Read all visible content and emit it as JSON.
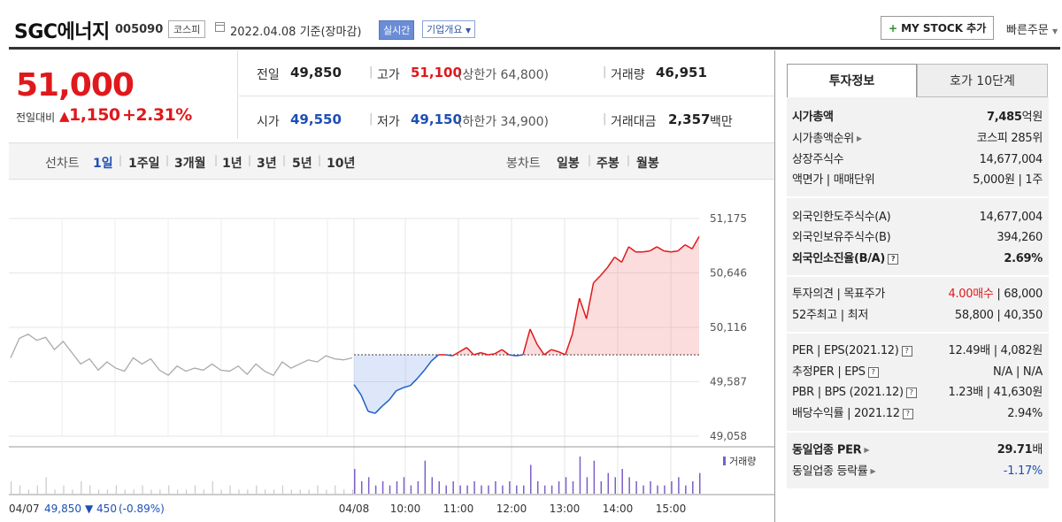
{
  "header": {
    "name": "SGC에너지",
    "code": "005090",
    "market": "코스피",
    "date": "2022.04.08 기준(장마감)",
    "realtime_button": "실시간",
    "overview_button": "기업개요",
    "mystock_button": "MY STOCK 추가",
    "quick_order": "빠른주문"
  },
  "price": {
    "current": "51,000",
    "change_label": "전일대비",
    "change": "1,150",
    "change_pct": "+2.31%"
  },
  "quote": {
    "prev_label": "전일",
    "prev": "49,850",
    "high_label": "고가",
    "high": "51,100",
    "upper_limit": "(상한가 64,800)",
    "volume_label": "거래량",
    "volume": "46,951",
    "open_label": "시가",
    "open": "49,550",
    "low_label": "저가",
    "low": "49,150",
    "lower_limit": "(하한가 34,900)",
    "amount_label": "거래대금",
    "amount": "2,357",
    "amount_unit": "백만"
  },
  "period_bar": {
    "line_label": "선차트",
    "line_periods": [
      "1일",
      "1주일",
      "3개월",
      "1년",
      "3년",
      "5년",
      "10년"
    ],
    "selected_period": "1일",
    "candle_label": "봉차트",
    "candle_periods": [
      "일봉",
      "주봉",
      "월봉"
    ]
  },
  "chart_data": {
    "type": "line",
    "y_ticks": [
      "51,175",
      "50,646",
      "50,116",
      "49,587",
      "49,058"
    ],
    "ylim": [
      49058,
      51175
    ],
    "x_labels": [
      "04/08",
      "10:00",
      "11:00",
      "12:00",
      "13:00",
      "14:00",
      "15:00"
    ],
    "reference_price": 49850,
    "volume_legend": "거래량",
    "prev_day_summary": {
      "date": "04/07",
      "close": "49,850",
      "change": "▼ 450",
      "change_pct": "(-0.89%)"
    },
    "prev_day_series": [
      49820,
      50010,
      50050,
      49990,
      50020,
      49900,
      49980,
      49870,
      49760,
      49810,
      49700,
      49780,
      49720,
      49690,
      49820,
      49760,
      49810,
      49700,
      49650,
      49740,
      49690,
      49720,
      49700,
      49760,
      49700,
      49690,
      49740,
      49660,
      49760,
      49690,
      49650,
      49780,
      49720,
      49760,
      49800,
      49780,
      49840,
      49810,
      49800,
      49820
    ],
    "today_series": [
      49560,
      49460,
      49300,
      49280,
      49350,
      49410,
      49500,
      49530,
      49550,
      49620,
      49700,
      49790,
      49850,
      49850,
      49840,
      49880,
      49920,
      49850,
      49870,
      49850,
      49860,
      49900,
      49850,
      49840,
      49850,
      50100,
      49950,
      49850,
      49900,
      49880,
      49850,
      50050,
      50400,
      50200,
      50550,
      50620,
      50700,
      50800,
      50750,
      50900,
      50850,
      50850,
      50860,
      50900,
      50860,
      50850,
      50860,
      50920,
      50880,
      51000
    ],
    "prev_volume": [
      3,
      2,
      1,
      2,
      4,
      1,
      2,
      1,
      3,
      2,
      1,
      1,
      2,
      1,
      1,
      2,
      1,
      1,
      2,
      1,
      1,
      2,
      1,
      3,
      1,
      2,
      1,
      1,
      2,
      1,
      1,
      2,
      1,
      1,
      1,
      2,
      1,
      2,
      1,
      1
    ],
    "today_volume": [
      6,
      3,
      4,
      2,
      3,
      2,
      3,
      4,
      2,
      3,
      8,
      4,
      3,
      2,
      3,
      2,
      2,
      3,
      2,
      2,
      3,
      2,
      3,
      2,
      2,
      7,
      3,
      2,
      2,
      3,
      4,
      3,
      9,
      4,
      8,
      3,
      5,
      4,
      6,
      4,
      3,
      2,
      3,
      2,
      2,
      3,
      4,
      2,
      3,
      5
    ]
  },
  "tabs": {
    "invest": "투자정보",
    "quote10": "호가 10단계"
  },
  "invest_info": {
    "market_cap_label": "시가총액",
    "market_cap": "7,485",
    "market_cap_unit": "억원",
    "rank_label": "시가총액순위",
    "rank": "코스피 285위",
    "shares_label": "상장주식수",
    "shares": "14,677,004",
    "face_label": "액면가 | 매매단위",
    "face": "5,000원 | 1주",
    "foreign_limit_label": "외국인한도주식수(A)",
    "foreign_limit": "14,677,004",
    "foreign_hold_label": "외국인보유주식수(B)",
    "foreign_hold": "394,260",
    "foreign_ratio_label": "외국인소진율(B/A)",
    "foreign_ratio": "2.69%",
    "opinion_label": "투자의견 | 목표주가",
    "opinion": "4.00매수",
    "target": " | 68,000",
    "week52_label": "52주최고 | 최저",
    "week52": "58,800 | 40,350",
    "per_label": "PER | EPS(2021.12)",
    "per": "12.49배 | 4,082원",
    "est_per_label": "추정PER | EPS",
    "est_per": "N/A | N/A",
    "pbr_label": "PBR | BPS (2021.12)",
    "pbr": "1.23배 | 41,630원",
    "dividend_label": "배당수익률 | 2021.12",
    "dividend": "2.94%",
    "sector_per_label": "동일업종 PER",
    "sector_per": "29.71",
    "sector_per_unit": "배",
    "sector_change_label": "동일업종 등락률",
    "sector_change": "-1.17%"
  }
}
